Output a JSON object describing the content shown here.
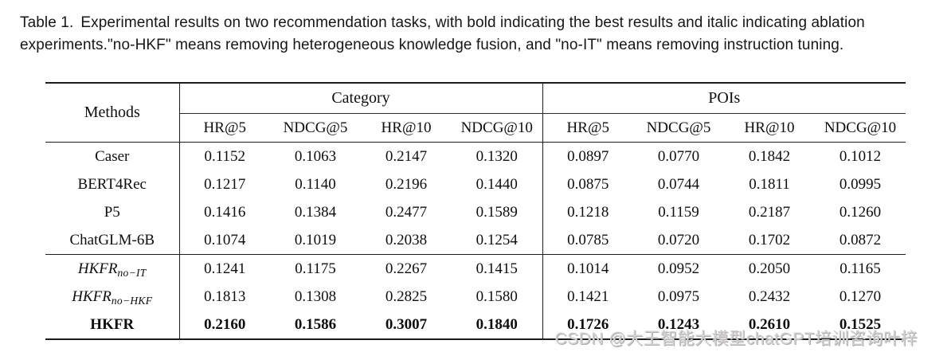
{
  "caption": {
    "label": "Table 1.",
    "text": "Experimental results on two recommendation tasks, with bold indicating the best results and italic indicating ablation experiments.\"no-HKF\" means removing heterogeneous knowledge fusion, and \"no-IT\" means removing instruction tuning."
  },
  "table": {
    "methods_header": "Methods",
    "groups": [
      {
        "label": "Category"
      },
      {
        "label": "POIs"
      }
    ],
    "metrics": [
      "HR@5",
      "NDCG@5",
      "HR@10",
      "NDCG@10"
    ],
    "rows": [
      {
        "method": {
          "base": "Caser",
          "sub": ""
        },
        "style": "normal",
        "values": [
          "0.1152",
          "0.1063",
          "0.2147",
          "0.1320",
          "0.0897",
          "0.0770",
          "0.1842",
          "0.1012"
        ]
      },
      {
        "method": {
          "base": "BERT4Rec",
          "sub": ""
        },
        "style": "normal",
        "values": [
          "0.1217",
          "0.1140",
          "0.2196",
          "0.1440",
          "0.0875",
          "0.0744",
          "0.1811",
          "0.0995"
        ]
      },
      {
        "method": {
          "base": "P5",
          "sub": ""
        },
        "style": "normal",
        "values": [
          "0.1416",
          "0.1384",
          "0.2477",
          "0.1589",
          "0.1218",
          "0.1159",
          "0.2187",
          "0.1260"
        ]
      },
      {
        "method": {
          "base": "ChatGLM-6B",
          "sub": ""
        },
        "style": "normal",
        "values": [
          "0.1074",
          "0.1019",
          "0.2038",
          "0.1254",
          "0.0785",
          "0.0720",
          "0.1702",
          "0.0872"
        ]
      },
      {
        "method": {
          "base": "HKFR",
          "sub": "no−IT"
        },
        "style": "ablation",
        "values": [
          "0.1241",
          "0.1175",
          "0.2267",
          "0.1415",
          "0.1014",
          "0.0952",
          "0.2050",
          "0.1165"
        ]
      },
      {
        "method": {
          "base": "HKFR",
          "sub": "no−HKF"
        },
        "style": "ablation",
        "values": [
          "0.1813",
          "0.1308",
          "0.2825",
          "0.1580",
          "0.1421",
          "0.0975",
          "0.2432",
          "0.1270"
        ]
      },
      {
        "method": {
          "base": "HKFR",
          "sub": ""
        },
        "style": "best",
        "values": [
          "0.2160",
          "0.1586",
          "0.3007",
          "0.1840",
          "0.1726",
          "0.1243",
          "0.2610",
          "0.1525"
        ]
      }
    ]
  },
  "watermark": {
    "text": "CSDN @大王智能大模型chatGPT培训咨询叶梓",
    "color": "#d2d0d0"
  }
}
